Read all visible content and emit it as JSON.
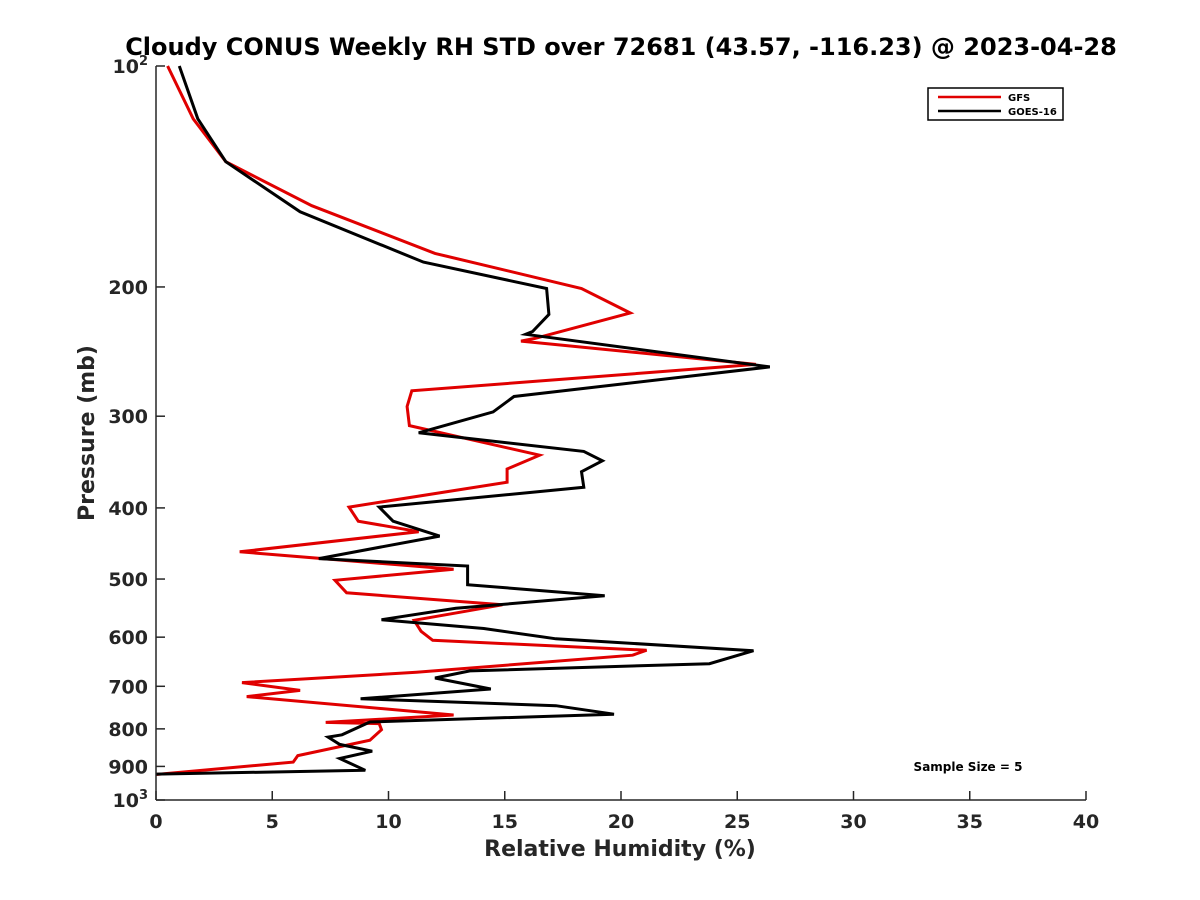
{
  "chart_data": {
    "type": "line",
    "title": "Cloudy CONUS Weekly RH STD over 72681 (43.57, -116.23) @ 2023-04-28",
    "xlabel": "Relative Humidity (%)",
    "ylabel": "Pressure (mb)",
    "xlim": [
      0,
      40
    ],
    "ylim": [
      100,
      1000
    ],
    "y_scale": "log",
    "y_reversed": true,
    "xticks": [
      0,
      5,
      10,
      15,
      20,
      25,
      30,
      35,
      40
    ],
    "yticks": [
      {
        "value": 100,
        "base": "10",
        "exp": "2"
      },
      {
        "value": 200,
        "label": "200"
      },
      {
        "value": 300,
        "label": "300"
      },
      {
        "value": 400,
        "label": "400"
      },
      {
        "value": 500,
        "label": "500"
      },
      {
        "value": 600,
        "label": "600"
      },
      {
        "value": 700,
        "label": "700"
      },
      {
        "value": 800,
        "label": "800"
      },
      {
        "value": 900,
        "label": "900"
      },
      {
        "value": 1000,
        "base": "10",
        "exp": "3"
      }
    ],
    "grid": false,
    "legend_position": "top-right",
    "annotation": "Sample Size = 5",
    "series": [
      {
        "name": "GFS",
        "color": "#e00000",
        "points": [
          [
            0.5,
            100
          ],
          [
            1.6,
            118
          ],
          [
            3.0,
            135
          ],
          [
            6.7,
            155
          ],
          [
            12.0,
            180
          ],
          [
            18.3,
            201
          ],
          [
            20.4,
            217
          ],
          [
            16.3,
            235
          ],
          [
            15.7,
            237
          ],
          [
            25.8,
            255
          ],
          [
            11.0,
            277
          ],
          [
            10.8,
            291
          ],
          [
            10.9,
            309
          ],
          [
            16.5,
            339
          ],
          [
            15.1,
            354
          ],
          [
            15.1,
            369
          ],
          [
            8.3,
            399
          ],
          [
            8.7,
            417
          ],
          [
            11.3,
            431
          ],
          [
            3.6,
            459
          ],
          [
            12.8,
            485
          ],
          [
            7.7,
            502
          ],
          [
            8.2,
            522
          ],
          [
            14.9,
            542
          ],
          [
            11.1,
            569
          ],
          [
            11.4,
            589
          ],
          [
            11.9,
            606
          ],
          [
            21.1,
            625
          ],
          [
            20.5,
            635
          ],
          [
            11.2,
            670
          ],
          [
            3.7,
            692
          ],
          [
            6.2,
            709
          ],
          [
            3.9,
            723
          ],
          [
            12.8,
            766
          ],
          [
            7.3,
            784
          ],
          [
            9.6,
            787
          ],
          [
            9.7,
            802
          ],
          [
            9.2,
            829
          ],
          [
            6.1,
            870
          ],
          [
            5.9,
            888
          ],
          [
            0.0,
            923
          ]
        ]
      },
      {
        "name": "GOES-16",
        "color": "#000000",
        "points": [
          [
            1.0,
            100
          ],
          [
            1.8,
            118
          ],
          [
            3.0,
            135
          ],
          [
            6.2,
            158
          ],
          [
            11.5,
            185
          ],
          [
            16.8,
            201
          ],
          [
            16.9,
            218
          ],
          [
            16.2,
            230
          ],
          [
            15.9,
            232
          ],
          [
            26.4,
            257
          ],
          [
            15.4,
            282
          ],
          [
            14.5,
            296
          ],
          [
            11.3,
            316
          ],
          [
            18.4,
            335
          ],
          [
            19.2,
            345
          ],
          [
            18.3,
            357
          ],
          [
            18.4,
            375
          ],
          [
            9.6,
            399
          ],
          [
            10.2,
            417
          ],
          [
            12.2,
            437
          ],
          [
            7.0,
            469
          ],
          [
            13.4,
            480
          ],
          [
            13.4,
            509
          ],
          [
            19.3,
            527
          ],
          [
            12.9,
            548
          ],
          [
            9.7,
            568
          ],
          [
            14.1,
            584
          ],
          [
            17.2,
            603
          ],
          [
            25.7,
            626
          ],
          [
            23.8,
            652
          ],
          [
            13.5,
            667
          ],
          [
            12.0,
            682
          ],
          [
            14.4,
            706
          ],
          [
            8.8,
            728
          ],
          [
            17.2,
            744
          ],
          [
            19.7,
            764
          ],
          [
            9.2,
            783
          ],
          [
            8.0,
            815
          ],
          [
            7.4,
            821
          ],
          [
            7.9,
            840
          ],
          [
            9.3,
            858
          ],
          [
            7.9,
            878
          ],
          [
            9.0,
            911
          ],
          [
            0.0,
            922
          ]
        ]
      }
    ]
  }
}
